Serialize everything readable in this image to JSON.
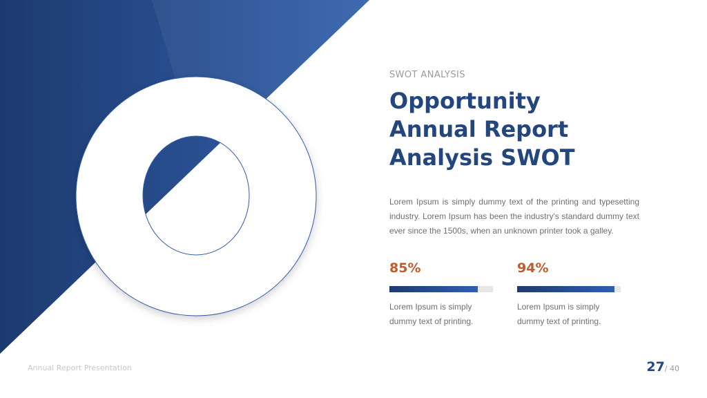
{
  "header": {
    "eyebrow": "SWOT ANALYSIS",
    "title_line1": "Opportunity",
    "title_line2": "Annual Report",
    "title_line3": "Analysis SWOT"
  },
  "description": "Lorem Ipsum is simply dummy text of the printing and typesetting industry. Lorem Ipsum has been the industry's standard dummy text ever since the 1500s, when an unknown printer took a galley.",
  "stats": [
    {
      "value": "85%",
      "fraction": 0.85,
      "text": "Lorem Ipsum is simply dummy text of printing."
    },
    {
      "value": "94%",
      "fraction": 0.94,
      "text": "Lorem Ipsum is simply dummy text of printing."
    }
  ],
  "footer": {
    "presentation": "Annual Report Presentation",
    "page_current": "27",
    "page_total": "/ 40"
  },
  "colors": {
    "primary": "#24467f",
    "accent": "#bf5b2e"
  }
}
